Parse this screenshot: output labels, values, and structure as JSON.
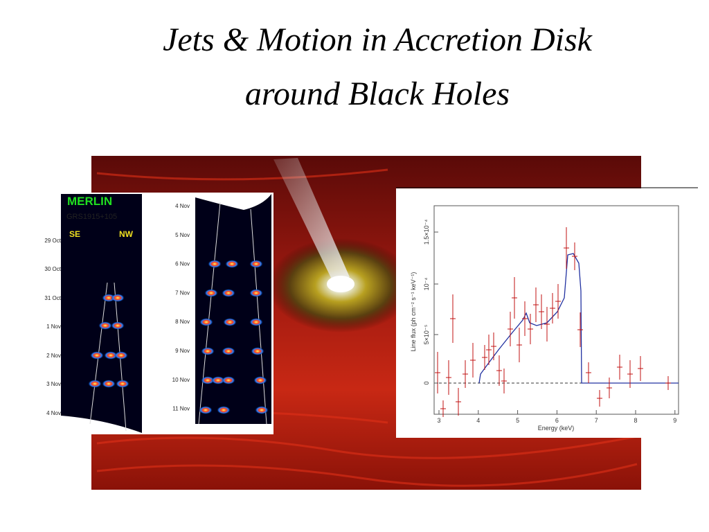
{
  "title": [
    "Jets & Motion in Accretion Disk",
    "around Black Holes"
  ],
  "merlin": {
    "label": "MERLIN",
    "source": "GRS1915+105",
    "left_side": "SE",
    "right_side": "NW",
    "dates": [
      "29 Oct",
      "30 Oct",
      "31 Oct",
      "1 Nov",
      "2 Nov",
      "3 Nov",
      "4 Nov"
    ]
  },
  "vla_dates": [
    "4 Nov",
    "5 Nov",
    "6 Nov",
    "7 Nov",
    "8  Nov",
    "9 Nov",
    "10 Nov",
    "11 Nov"
  ],
  "spectrum": {
    "x_axis_label": "Energy (keV)",
    "y_axis_label": "Line flux (ph cm⁻² s⁻¹ keV⁻¹)",
    "x_ticks": [
      "3",
      "4",
      "5",
      "6",
      "7",
      "8",
      "9"
    ],
    "y_ticks": [
      "0",
      "5×10⁻⁵",
      "10⁻⁴",
      "1.5×10⁻⁴"
    ]
  }
}
